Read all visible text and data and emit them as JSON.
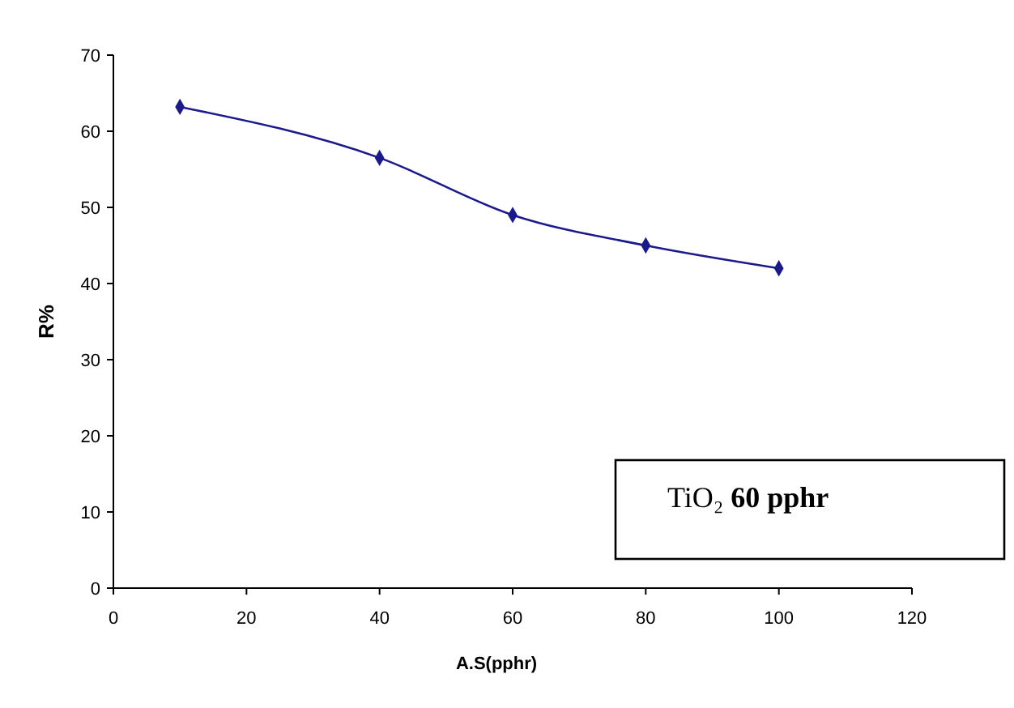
{
  "chart_data": {
    "type": "line",
    "xlabel": "A.S(pphr)",
    "ylabel": "R%",
    "x": [
      10,
      40,
      60,
      80,
      100
    ],
    "series": [
      {
        "color": "#1a1a8c",
        "values": [
          63.2,
          56.5,
          49,
          45,
          42
        ]
      }
    ],
    "xlim": [
      0,
      120
    ],
    "xticks": [
      0,
      20,
      40,
      60,
      80,
      100,
      120
    ],
    "ylim": [
      0,
      70
    ],
    "yticks": [
      0,
      10,
      20,
      30,
      40,
      50,
      60,
      70
    ],
    "marker": "diamond",
    "annotations": [
      "TiO₂ 60 pphr"
    ]
  }
}
